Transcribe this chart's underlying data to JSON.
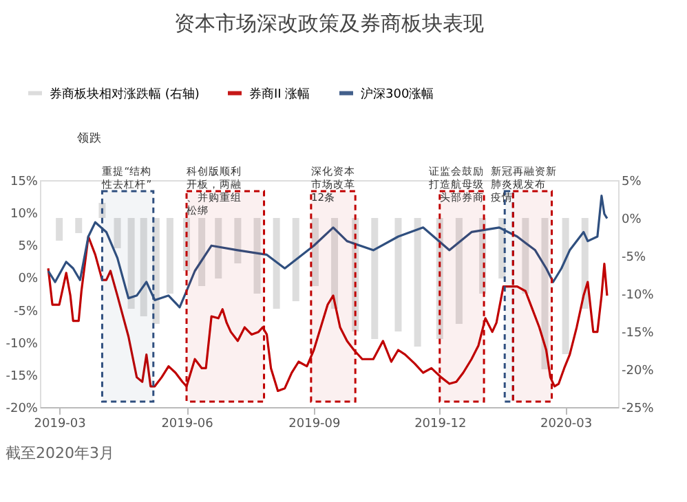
{
  "chart_data": {
    "type": "line",
    "title": "资本市场深改政策及券商板块表现",
    "xlim": [
      "2019-02-15",
      "2020-04-08"
    ],
    "xticks": [
      "2019-03",
      "2019-06",
      "2019-09",
      "2019-12",
      "2020-03"
    ],
    "ylim": [
      -20,
      15
    ],
    "yticks": [
      {
        "value": -20,
        "label": "-20%"
      },
      {
        "value": -15,
        "label": "-15%"
      },
      {
        "value": -10,
        "label": "-10%"
      },
      {
        "value": -5,
        "label": "-5%"
      },
      {
        "value": 0,
        "label": "0%"
      },
      {
        "value": 5,
        "label": "5%"
      },
      {
        "value": 10,
        "label": "10%"
      },
      {
        "value": 15,
        "label": "15%"
      }
    ],
    "y2lim": [
      -25,
      5
    ],
    "y2ticks": [
      {
        "value": -25,
        "label": "-25%"
      },
      {
        "value": -20,
        "label": "-20%"
      },
      {
        "value": -15,
        "label": "-15%"
      },
      {
        "value": -10,
        "label": "-10%"
      },
      {
        "value": -5,
        "label": "-5%"
      },
      {
        "value": 0,
        "label": "0%"
      },
      {
        "value": 5,
        "label": "5%"
      }
    ],
    "grid": false,
    "legend": "top",
    "series": [
      {
        "name": "券商板块相对涨跌幅 (右轴)",
        "type": "bar",
        "axis": "y2",
        "color": "#d9d9d9",
        "x": [
          "2019-03-01",
          "2019-03-15",
          "2019-04-01",
          "2019-04-12",
          "2019-04-22",
          "2019-05-01",
          "2019-05-10",
          "2019-05-20",
          "2019-06-01",
          "2019-06-12",
          "2019-06-24",
          "2019-07-08",
          "2019-07-22",
          "2019-08-05",
          "2019-08-19",
          "2019-09-02",
          "2019-09-16",
          "2019-10-01",
          "2019-10-15",
          "2019-11-01",
          "2019-11-15",
          "2019-12-01",
          "2019-12-15",
          "2020-01-01",
          "2020-01-15",
          "2020-02-01",
          "2020-02-15",
          "2020-03-01",
          "2020-03-15"
        ],
        "values": [
          -3,
          -2,
          2,
          -4,
          -12,
          -13,
          -14,
          -10,
          -7,
          -9,
          -8,
          -6,
          -10,
          -12,
          -11,
          -9,
          -12,
          -15,
          -16,
          -15,
          -17,
          -16,
          -14,
          -10,
          -8,
          -10,
          -20,
          -18,
          -12
        ]
      },
      {
        "name": "券商II 涨幅",
        "color": "#c00000",
        "x": [
          "2019-02-21",
          "2019-02-24",
          "2019-03-01",
          "2019-03-06",
          "2019-03-09",
          "2019-03-11",
          "2019-03-15",
          "2019-03-17",
          "2019-03-22",
          "2019-03-27",
          "2019-04-01",
          "2019-04-04",
          "2019-04-07",
          "2019-04-12",
          "2019-04-20",
          "2019-04-26",
          "2019-04-30",
          "2019-05-03",
          "2019-05-06",
          "2019-05-09",
          "2019-05-14",
          "2019-05-19",
          "2019-05-24",
          "2019-05-29",
          "2019-06-01",
          "2019-06-04",
          "2019-06-07",
          "2019-06-12",
          "2019-06-15",
          "2019-06-19",
          "2019-06-24",
          "2019-06-27",
          "2019-06-30",
          "2019-07-03",
          "2019-07-08",
          "2019-07-13",
          "2019-07-18",
          "2019-07-23",
          "2019-07-26",
          "2019-07-29",
          "2019-08-01",
          "2019-08-06",
          "2019-08-11",
          "2019-08-16",
          "2019-08-21",
          "2019-08-27",
          "2019-09-01",
          "2019-09-06",
          "2019-09-11",
          "2019-09-15",
          "2019-09-20",
          "2019-09-25",
          "2019-09-30",
          "2019-10-06",
          "2019-10-14",
          "2019-10-21",
          "2019-10-27",
          "2019-11-01",
          "2019-11-06",
          "2019-11-13",
          "2019-11-19",
          "2019-11-25",
          "2019-12-02",
          "2019-12-08",
          "2019-12-13",
          "2019-12-18",
          "2019-12-24",
          "2019-12-29",
          "2020-01-03",
          "2020-01-08",
          "2020-01-11",
          "2020-01-16",
          "2020-01-26",
          "2020-02-01",
          "2020-02-06",
          "2020-02-11",
          "2020-02-16",
          "2020-02-19",
          "2020-02-22",
          "2020-02-25",
          "2020-02-29",
          "2020-03-04",
          "2020-03-09",
          "2020-03-14",
          "2020-03-17",
          "2020-03-21",
          "2020-03-24",
          "2020-03-27",
          "2020-03-29",
          "2020-03-31"
        ],
        "values": [
          1.4,
          -4.2,
          -4.2,
          0.7,
          -2.8,
          -6.7,
          -6.7,
          -2.1,
          6.3,
          3.5,
          -0.4,
          -0.4,
          1.0,
          -2.8,
          -9.1,
          -15.4,
          -16.1,
          -11.9,
          -16.8,
          -16.8,
          -15.4,
          -13.7,
          -14.7,
          -16.1,
          -16.8,
          -14.7,
          -12.6,
          -14.0,
          -14.0,
          -6.0,
          -6.3,
          -4.9,
          -7.0,
          -8.4,
          -9.8,
          -7.7,
          -8.8,
          -8.4,
          -7.7,
          -8.8,
          -14.0,
          -17.5,
          -17.1,
          -14.7,
          -13.0,
          -13.7,
          -11.2,
          -7.7,
          -4.2,
          -2.8,
          -7.7,
          -9.8,
          -11.2,
          -12.6,
          -12.6,
          -9.8,
          -13.0,
          -11.2,
          -11.9,
          -13.3,
          -14.7,
          -14.0,
          -15.4,
          -16.4,
          -16.1,
          -14.7,
          -12.6,
          -10.5,
          -6.3,
          -8.4,
          -7.0,
          -1.4,
          -1.4,
          -2.1,
          -4.9,
          -7.7,
          -11.2,
          -15.4,
          -16.8,
          -16.4,
          -14.0,
          -11.9,
          -7.7,
          -2.8,
          -0.7,
          -8.4,
          -8.4,
          -2.8,
          2.1,
          -2.8
        ]
      },
      {
        "name": "沪深300涨幅",
        "color": "#2f4f7f",
        "x": [
          "2019-02-21",
          "2019-02-26",
          "2019-03-06",
          "2019-03-11",
          "2019-03-16",
          "2019-03-22",
          "2019-03-27",
          "2019-04-04",
          "2019-04-12",
          "2019-04-20",
          "2019-04-26",
          "2019-05-03",
          "2019-05-09",
          "2019-05-19",
          "2019-05-27",
          "2019-06-01",
          "2019-06-07",
          "2019-06-19",
          "2019-07-08",
          "2019-07-29",
          "2019-08-11",
          "2019-09-01",
          "2019-09-15",
          "2019-09-25",
          "2019-10-14",
          "2019-11-01",
          "2019-11-19",
          "2019-12-08",
          "2019-12-24",
          "2020-01-13",
          "2020-01-26",
          "2020-02-08",
          "2020-02-16",
          "2020-02-21",
          "2020-02-27",
          "2020-03-04",
          "2020-03-14",
          "2020-03-17",
          "2020-03-24",
          "2020-03-27",
          "2020-03-29",
          "2020-03-31"
        ],
        "values": [
          1.0,
          -0.7,
          2.4,
          1.4,
          -0.4,
          6.3,
          8.5,
          7.0,
          3.0,
          -3.2,
          -2.8,
          -0.7,
          -3.5,
          -2.8,
          -4.6,
          -2.1,
          1.0,
          4.9,
          4.2,
          3.5,
          1.4,
          4.9,
          7.7,
          5.6,
          4.2,
          6.3,
          7.7,
          4.2,
          7.0,
          7.7,
          6.3,
          4.2,
          1.4,
          -0.7,
          1.4,
          4.2,
          7.0,
          5.6,
          6.3,
          12.6,
          9.8,
          9.1
        ]
      }
    ],
    "bands": [
      {
        "axis": "x",
        "from": "2019-04-01",
        "to": "2019-05-08",
        "label": "重提“结构性去杠杆”",
        "color": "#2f4f7f"
      },
      {
        "axis": "x",
        "from": "2019-06-01",
        "to": "2019-07-27",
        "label": "科创版顺利开板，两融、并购重组松绑",
        "color": "#c00000"
      },
      {
        "axis": "x",
        "from": "2019-08-30",
        "to": "2019-10-01",
        "label": "深化资本市场改革12条",
        "color": "#c00000"
      },
      {
        "axis": "x",
        "from": "2019-12-01",
        "to": "2020-01-02",
        "label": "证监会鼓励打造航母级头部券商",
        "color": "#c00000"
      },
      {
        "axis": "x",
        "from": "2020-01-17",
        "to": "2020-01-23",
        "label": "新冠肺炎疫情",
        "color": "#2f4f7f"
      },
      {
        "axis": "x",
        "from": "2020-01-23",
        "to": "2020-02-20",
        "label": "再融资新规发布",
        "color": "#c00000"
      }
    ],
    "annotations": [
      "领跌",
      "截至2020年3月"
    ]
  }
}
